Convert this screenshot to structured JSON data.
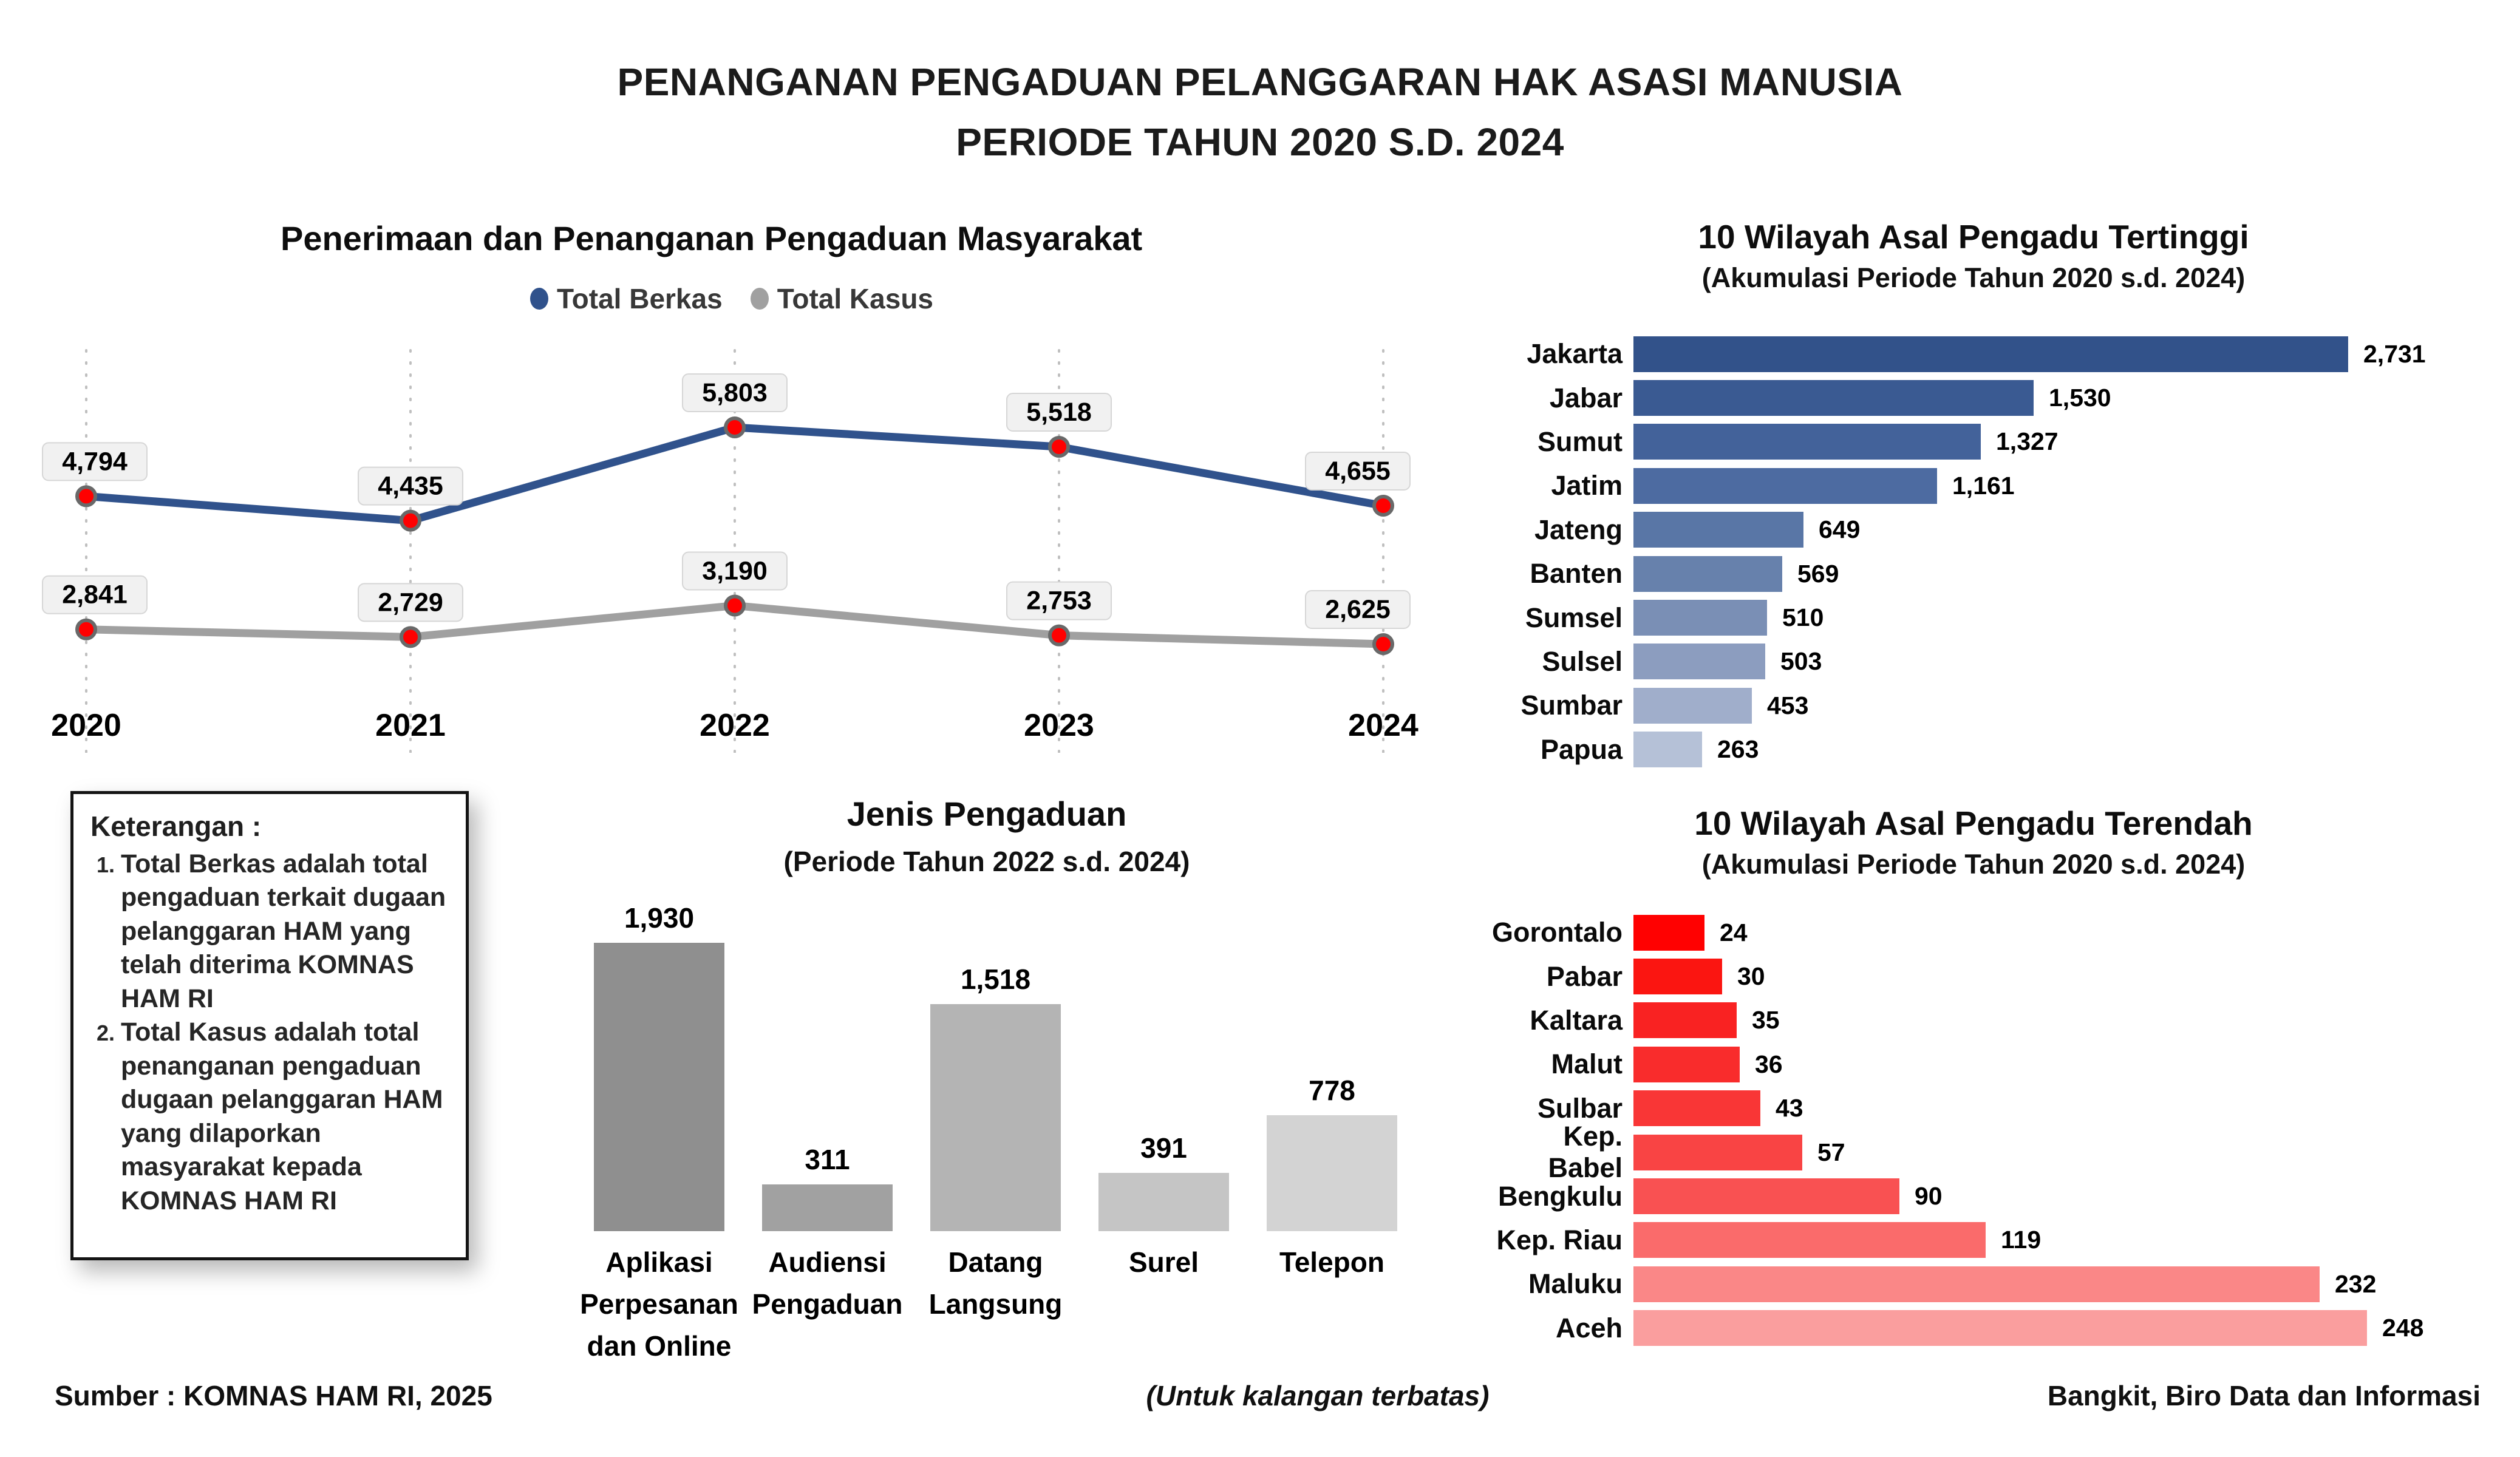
{
  "page": {
    "title_line1": "PENANGANAN PENGADUAN PELANGGARAN HAK ASASI MANUSIA",
    "title_line2": "PERIODE TAHUN 2020 S.D. 2024",
    "footer_left": "Sumber : KOMNAS HAM RI, 2025",
    "footer_center": "(Untuk kalangan terbatas)",
    "footer_right": "Bangkit, Biro Data dan Informasi"
  },
  "keterangan": {
    "heading": "Keterangan :",
    "items": [
      "Total Berkas adalah total pengaduan terkait dugaan pelanggaran HAM yang telah diterima KOMNAS HAM RI",
      "Total Kasus adalah total penanganan pengaduan dugaan pelanggaran HAM yang dilaporkan masyarakat kepada KOMNAS HAM RI"
    ]
  },
  "chart_data": [
    {
      "type": "line",
      "title": "Penerimaan dan Penanganan Pengaduan Masyarakat",
      "xlabel": "",
      "ylabel": "",
      "grid": "vertical-dotted",
      "legend_position": "top-center",
      "categories": [
        "2020",
        "2021",
        "2022",
        "2023",
        "2024"
      ],
      "series": [
        {
          "name": "Total Berkas",
          "color": "#30528C",
          "values": [
            4794,
            4435,
            5803,
            5518,
            4655
          ],
          "labels": [
            "4,794",
            "4,435",
            "5,803",
            "5,518",
            "4,655"
          ]
        },
        {
          "name": "Total Kasus",
          "color": "#A0A0A0",
          "values": [
            2841,
            2729,
            3190,
            2753,
            2625
          ],
          "labels": [
            "2,841",
            "2,729",
            "3,190",
            "2,753",
            "2,625"
          ]
        }
      ],
      "marker_color": "#FF0000",
      "marker_stroke": "#696969",
      "label_box_fill": "#F1F1F1",
      "label_box_stroke": "#D6D6D6"
    },
    {
      "type": "bar-horizontal",
      "title": "10 Wilayah Asal Pengadu Tertinggi",
      "subtitle": "(Akumulasi Periode Tahun 2020 s.d. 2024)",
      "xlabel": "",
      "ylabel": "",
      "xlim": [
        0,
        2731
      ],
      "categories": [
        "Jakarta",
        "Jabar",
        "Sumut",
        "Jatim",
        "Jateng",
        "Banten",
        "Sumsel",
        "Sulsel",
        "Sumbar",
        "Papua"
      ],
      "values": [
        2731,
        1530,
        1327,
        1161,
        649,
        569,
        510,
        503,
        453,
        263
      ],
      "value_labels": [
        "2,731",
        "1,530",
        "1,327",
        "1,161",
        "649",
        "569",
        "510",
        "503",
        "453",
        "263"
      ],
      "colors": [
        "#32528A",
        "#3A5A92",
        "#43629A",
        "#4D6BA1",
        "#5976A6",
        "#6781AC",
        "#7A8FB5",
        "#8C9DBF",
        "#A0AECB",
        "#B5C1D7"
      ]
    },
    {
      "type": "bar",
      "title": "Jenis Pengaduan",
      "subtitle": "(Periode Tahun 2022 s.d. 2024)",
      "xlabel": "",
      "ylabel": "",
      "ylim": [
        0,
        1930
      ],
      "categories": [
        "Aplikasi Perpesanan dan Online",
        "Audiensi Pengaduan",
        "Datang Langsung",
        "Surel",
        "Telepon"
      ],
      "label_lines": [
        [
          "Aplikasi",
          "Perpesanan",
          "dan Online"
        ],
        [
          "Audiensi",
          "Pengaduan"
        ],
        [
          "Datang",
          "Langsung"
        ],
        [
          "Surel"
        ],
        [
          "Telepon"
        ]
      ],
      "values": [
        1930,
        311,
        1518,
        391,
        778
      ],
      "value_labels": [
        "1,930",
        "311",
        "1,518",
        "391",
        "778"
      ],
      "colors": [
        "#8F8F8F",
        "#A1A1A1",
        "#B4B4B4",
        "#C5C5C5",
        "#D3D3D3"
      ]
    },
    {
      "type": "bar-horizontal",
      "title": "10 Wilayah Asal Pengadu Terendah",
      "subtitle": "(Akumulasi Periode Tahun 2020 s.d. 2024)",
      "xlabel": "",
      "ylabel": "",
      "xlim": [
        0,
        248
      ],
      "categories": [
        "Gorontalo",
        "Pabar",
        "Kaltara",
        "Malut",
        "Sulbar",
        "Kep. Babel",
        "Bengkulu",
        "Kep. Riau",
        "Maluku",
        "Aceh"
      ],
      "values": [
        24,
        30,
        35,
        36,
        43,
        57,
        90,
        119,
        232,
        248
      ],
      "value_labels": [
        "24",
        "30",
        "35",
        "36",
        "43",
        "57",
        "90",
        "119",
        "232",
        "248"
      ],
      "colors": [
        "#FF0101",
        "#FB1511",
        "#F92222",
        "#F92C2C",
        "#F93636",
        "#F94444",
        "#F95152",
        "#FA6B6B",
        "#FA8787",
        "#FA9E9E"
      ]
    }
  ]
}
